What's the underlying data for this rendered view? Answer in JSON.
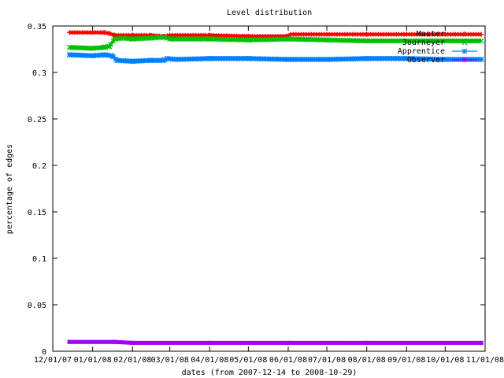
{
  "chart_data": {
    "type": "line",
    "title": "Level distribution",
    "xlabel": "dates (from 2007-12-14 to 2008-10-29)",
    "ylabel": "percentage of edges",
    "x_ticks": [
      "12/01/07",
      "01/01/08",
      "02/01/08",
      "03/01/08",
      "04/01/08",
      "05/01/08",
      "06/01/08",
      "07/01/08",
      "08/01/08",
      "09/01/08",
      "10/01/08",
      "11/01/08"
    ],
    "y_ticks": [
      "0",
      "0.05",
      "0.1",
      "0.15",
      "0.2",
      "0.25",
      "0.3",
      "0.35"
    ],
    "ylim": [
      0,
      0.35
    ],
    "xlim": [
      "2007-12-01",
      "2008-11-01"
    ],
    "grid": false,
    "legend_position": "top-right",
    "series": [
      {
        "name": "Master",
        "color": "#ff0000",
        "marker": "plus",
        "points": [
          [
            "2007-12-14",
            0.343
          ],
          [
            "2008-01-10",
            0.343
          ],
          [
            "2008-01-14",
            0.342
          ],
          [
            "2008-01-18",
            0.34
          ],
          [
            "2008-02-01",
            0.34
          ],
          [
            "2008-02-15",
            0.34
          ],
          [
            "2008-02-25",
            0.339
          ],
          [
            "2008-03-01",
            0.34
          ],
          [
            "2008-04-01",
            0.34
          ],
          [
            "2008-05-01",
            0.339
          ],
          [
            "2008-05-31",
            0.339
          ],
          [
            "2008-06-03",
            0.341
          ],
          [
            "2008-07-01",
            0.341
          ],
          [
            "2008-08-01",
            0.341
          ],
          [
            "2008-09-01",
            0.341
          ],
          [
            "2008-10-01",
            0.341
          ],
          [
            "2008-10-29",
            0.341
          ]
        ]
      },
      {
        "name": "Journeyer",
        "color": "#00c000",
        "marker": "x",
        "points": [
          [
            "2007-12-14",
            0.327
          ],
          [
            "2008-01-01",
            0.326
          ],
          [
            "2008-01-10",
            0.327
          ],
          [
            "2008-01-14",
            0.328
          ],
          [
            "2008-01-18",
            0.336
          ],
          [
            "2008-01-25",
            0.337
          ],
          [
            "2008-02-01",
            0.336
          ],
          [
            "2008-02-15",
            0.337
          ],
          [
            "2008-02-25",
            0.338
          ],
          [
            "2008-03-01",
            0.336
          ],
          [
            "2008-04-01",
            0.336
          ],
          [
            "2008-05-01",
            0.335
          ],
          [
            "2008-06-01",
            0.336
          ],
          [
            "2008-07-01",
            0.335
          ],
          [
            "2008-08-01",
            0.334
          ],
          [
            "2008-09-01",
            0.334
          ],
          [
            "2008-10-01",
            0.334
          ],
          [
            "2008-10-29",
            0.334
          ]
        ]
      },
      {
        "name": "Apprentice",
        "color": "#0080ff",
        "marker": "star",
        "points": [
          [
            "2007-12-14",
            0.319
          ],
          [
            "2008-01-01",
            0.318
          ],
          [
            "2008-01-10",
            0.319
          ],
          [
            "2008-01-16",
            0.318
          ],
          [
            "2008-01-20",
            0.313
          ],
          [
            "2008-02-01",
            0.312
          ],
          [
            "2008-02-15",
            0.313
          ],
          [
            "2008-02-25",
            0.313
          ],
          [
            "2008-02-28",
            0.315
          ],
          [
            "2008-03-05",
            0.314
          ],
          [
            "2008-04-01",
            0.315
          ],
          [
            "2008-05-01",
            0.315
          ],
          [
            "2008-06-01",
            0.314
          ],
          [
            "2008-07-01",
            0.314
          ],
          [
            "2008-08-01",
            0.315
          ],
          [
            "2008-09-01",
            0.315
          ],
          [
            "2008-10-01",
            0.314
          ],
          [
            "2008-10-29",
            0.314
          ]
        ]
      },
      {
        "name": "Observer",
        "color": "#a000ff",
        "marker": "square",
        "points": [
          [
            "2007-12-14",
            0.01
          ],
          [
            "2008-01-18",
            0.01
          ],
          [
            "2008-02-01",
            0.009
          ],
          [
            "2008-04-01",
            0.009
          ],
          [
            "2008-06-01",
            0.009
          ],
          [
            "2008-08-01",
            0.009
          ],
          [
            "2008-10-29",
            0.009
          ]
        ]
      }
    ]
  }
}
